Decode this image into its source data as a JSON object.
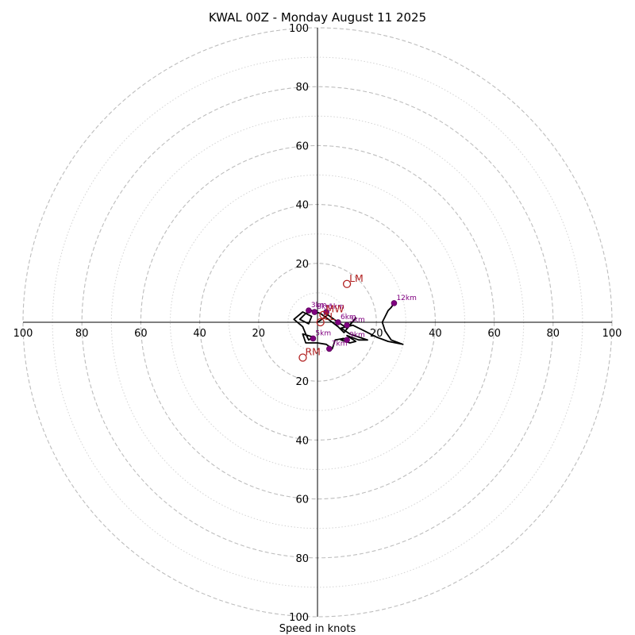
{
  "chart_data": {
    "type": "hodograph",
    "title": "KWAL 00Z - Monday August 11 2025",
    "xlabel": "Speed in knots",
    "range": [
      -100,
      100
    ],
    "major_rings": [
      20,
      40,
      60,
      80,
      100
    ],
    "minor_rings": [
      10,
      30,
      50,
      70,
      90
    ],
    "tick_labels": {
      "x": [
        "100",
        "80",
        "60",
        "40",
        "20",
        "20",
        "40",
        "60",
        "80",
        "100"
      ],
      "x_values": [
        -100,
        -80,
        -60,
        -40,
        -20,
        20,
        40,
        60,
        80,
        100
      ],
      "y": [
        "100",
        "80",
        "60",
        "40",
        "20",
        "20",
        "40",
        "60",
        "80",
        "100"
      ],
      "y_values": [
        100,
        80,
        60,
        40,
        20,
        -20,
        -40,
        -60,
        -80,
        -100
      ]
    },
    "wind_profile": [
      [
        0,
        0
      ],
      [
        1.5,
        1
      ],
      [
        3.5,
        2.5
      ],
      [
        7,
        0
      ],
      [
        10,
        -2
      ],
      [
        13,
        1.5
      ],
      [
        11,
        -1
      ],
      [
        9,
        -3.5
      ],
      [
        7,
        -1.5
      ],
      [
        5,
        0
      ],
      [
        3,
        1.5
      ],
      [
        1,
        3
      ],
      [
        -2,
        4
      ],
      [
        -4,
        3
      ],
      [
        -6,
        1
      ],
      [
        -3,
        -0.5
      ],
      [
        -2,
        2
      ],
      [
        -5,
        3.5
      ],
      [
        -8,
        1
      ],
      [
        -5,
        -1.5
      ],
      [
        -4,
        -4
      ],
      [
        -3,
        -6
      ],
      [
        -1.5,
        -5
      ],
      [
        -5,
        -4
      ],
      [
        -4,
        -7
      ],
      [
        0,
        -7
      ],
      [
        3,
        -7.5
      ],
      [
        5,
        -9
      ],
      [
        6,
        -6
      ],
      [
        9,
        -5.5
      ],
      [
        8,
        -6
      ],
      [
        11,
        -7
      ],
      [
        13,
        -6.5
      ],
      [
        10,
        -4.5
      ],
      [
        14,
        -6
      ],
      [
        17,
        -6
      ],
      [
        14,
        -5
      ],
      [
        11,
        -4
      ],
      [
        8,
        -2
      ],
      [
        12,
        -1
      ],
      [
        16,
        -3
      ],
      [
        20,
        -5
      ],
      [
        24,
        -6.5
      ],
      [
        29,
        -7.5
      ],
      [
        25,
        -6
      ],
      [
        23,
        -3
      ],
      [
        22,
        0
      ],
      [
        23,
        2
      ],
      [
        24,
        4
      ],
      [
        25,
        5
      ],
      [
        26,
        6.5
      ]
    ],
    "height_markers": [
      {
        "label": "12km",
        "u": 26,
        "v": 6.5
      },
      {
        "label": "1km",
        "u": 3,
        "v": 3.5
      },
      {
        "label": "3km",
        "u": -3,
        "v": 4
      },
      {
        "label": "8km",
        "u": -1,
        "v": 3.5
      },
      {
        "label": "6km",
        "u": 7,
        "v": 0
      },
      {
        "label": "3km",
        "u": 10,
        "v": -1
      },
      {
        "label": "5km",
        "u": -1.5,
        "v": -5.5
      },
      {
        "label": "9km",
        "u": 10,
        "v": -6
      },
      {
        "label": "7km",
        "u": 4,
        "v": -9
      }
    ],
    "storm_motions": [
      {
        "label": "LM",
        "u": 10,
        "v": 13
      },
      {
        "label": "RM",
        "u": -5,
        "v": -12
      },
      {
        "label": "MW",
        "u": 2,
        "v": 2.5
      },
      {
        "label": "CL",
        "u": 1,
        "v": 0
      }
    ],
    "colors": {
      "trace": "#000000",
      "height_markers": "#800080",
      "storm_motion": "#b22222",
      "rings": "#bdbdbd"
    }
  }
}
